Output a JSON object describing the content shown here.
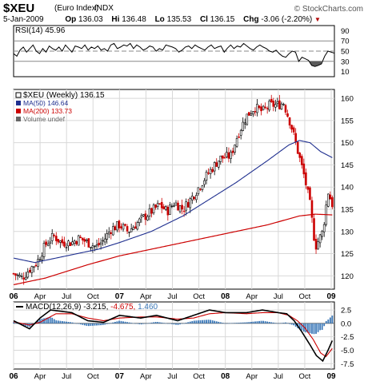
{
  "header": {
    "symbol": "$XEU",
    "name": "(Euro Index)",
    "exchange": "INDX",
    "date": "5-Jan-2009",
    "op_label": "Op",
    "op": "136.03",
    "hi_label": "Hi",
    "hi": "136.48",
    "lo_label": "Lo",
    "lo": "135.53",
    "cl_label": "Cl",
    "cl": "136.15",
    "chg_label": "Chg",
    "chg": "-3.06 (-2.20%)",
    "brand": "© StockCharts.com",
    "colors": {
      "down": "#b00000"
    }
  },
  "chart_data": [
    {
      "type": "line",
      "title": "RSI(14) 45.96",
      "series": [
        {
          "name": "RSI(14)",
          "last": 45.96
        }
      ],
      "y_ticks": [
        90,
        70,
        50,
        30,
        10
      ],
      "ylim": [
        0,
        100
      ],
      "x_range": [
        "2006-01",
        "2009-01"
      ],
      "reference_lines": [
        70,
        50,
        30
      ],
      "approx_values": [
        45,
        40,
        52,
        58,
        48,
        55,
        62,
        50,
        45,
        55,
        48,
        60,
        55,
        52,
        58,
        50,
        62,
        55,
        48,
        60,
        58,
        55,
        62,
        52,
        58,
        55,
        60,
        52,
        55,
        50,
        62,
        65,
        55,
        58,
        62,
        60,
        65,
        55,
        62,
        58,
        52,
        55,
        60,
        58,
        50,
        55,
        52,
        62,
        60,
        58,
        55,
        48,
        52,
        58,
        60,
        55,
        62,
        58,
        55,
        52,
        58,
        62,
        55,
        58,
        60,
        48,
        56,
        62,
        55,
        60,
        58,
        65,
        60,
        55,
        52,
        58,
        62,
        58,
        55,
        50,
        48,
        52,
        45,
        40,
        38,
        45,
        50,
        48,
        30,
        38,
        35,
        32,
        22,
        20,
        22,
        25,
        40,
        50,
        48,
        46
      ],
      "colors": {
        "line": "#000000",
        "overbought_fill": "#8b2e2e",
        "oversold_fill": "#5a5a5a"
      }
    },
    {
      "type": "line",
      "title": "$XEU (Weekly) 136.15",
      "series": [
        {
          "name": "$XEU (Weekly)",
          "last": 136.15,
          "style": "candlestick"
        },
        {
          "name": "MA(50)",
          "last": 146.64,
          "color": "#1f2f8f"
        },
        {
          "name": "MA(200)",
          "last": 133.73,
          "color": "#cc0000"
        },
        {
          "name": "Volume undef",
          "color": "#666666"
        }
      ],
      "y_ticks": [
        160,
        155,
        150,
        145,
        140,
        135,
        130,
        125,
        120
      ],
      "ylim": [
        117,
        162
      ],
      "x_ticks": [
        "06",
        "Apr",
        "Jul",
        "Oct",
        "07",
        "Apr",
        "Jul",
        "Oct",
        "08",
        "Apr",
        "Jul",
        "Oct",
        "09"
      ],
      "x_range": [
        "2006-01",
        "2009-01"
      ],
      "approx_close": [
        [
          2006.0,
          120.5
        ],
        [
          2006.08,
          119.5
        ],
        [
          2006.15,
          121.5
        ],
        [
          2006.22,
          123.0
        ],
        [
          2006.3,
          127.0
        ],
        [
          2006.38,
          129.0
        ],
        [
          2006.45,
          127.5
        ],
        [
          2006.55,
          127.5
        ],
        [
          2006.62,
          128.5
        ],
        [
          2006.7,
          127.5
        ],
        [
          2006.78,
          126.5
        ],
        [
          2006.85,
          128.0
        ],
        [
          2006.92,
          130.5
        ],
        [
          2007.0,
          131.5
        ],
        [
          2007.08,
          130.0
        ],
        [
          2007.15,
          131.5
        ],
        [
          2007.22,
          133.0
        ],
        [
          2007.3,
          134.5
        ],
        [
          2007.38,
          136.0
        ],
        [
          2007.45,
          134.5
        ],
        [
          2007.52,
          136.5
        ],
        [
          2007.6,
          135.0
        ],
        [
          2007.68,
          137.5
        ],
        [
          2007.75,
          140.0
        ],
        [
          2007.82,
          142.5
        ],
        [
          2007.9,
          145.0
        ],
        [
          2007.95,
          146.5
        ],
        [
          2008.05,
          147.0
        ],
        [
          2008.12,
          152.0
        ],
        [
          2008.2,
          156.0
        ],
        [
          2008.28,
          158.0
        ],
        [
          2008.35,
          157.0
        ],
        [
          2008.42,
          158.5
        ],
        [
          2008.5,
          158.5
        ],
        [
          2008.55,
          159.0
        ],
        [
          2008.62,
          154.0
        ],
        [
          2008.68,
          148.5
        ],
        [
          2008.75,
          142.0
        ],
        [
          2008.8,
          136.0
        ],
        [
          2008.85,
          126.5
        ],
        [
          2008.92,
          130.0
        ],
        [
          2008.97,
          139.0
        ],
        [
          2009.01,
          136.15
        ]
      ],
      "approx_ma50": [
        [
          2006.0,
          124.0
        ],
        [
          2006.2,
          123.0
        ],
        [
          2006.5,
          124.5
        ],
        [
          2006.8,
          126.0
        ],
        [
          2007.0,
          127.5
        ],
        [
          2007.3,
          130.0
        ],
        [
          2007.6,
          133.5
        ],
        [
          2007.9,
          138.0
        ],
        [
          2008.1,
          141.0
        ],
        [
          2008.4,
          146.0
        ],
        [
          2008.6,
          149.5
        ],
        [
          2008.7,
          150.5
        ],
        [
          2008.8,
          150.0
        ],
        [
          2008.9,
          148.0
        ],
        [
          2009.01,
          146.64
        ]
      ],
      "approx_ma200": [
        [
          2006.0,
          118.0
        ],
        [
          2006.3,
          119.5
        ],
        [
          2006.7,
          122.5
        ],
        [
          2007.0,
          124.5
        ],
        [
          2007.4,
          126.5
        ],
        [
          2007.8,
          128.5
        ],
        [
          2008.1,
          130.0
        ],
        [
          2008.4,
          131.5
        ],
        [
          2008.7,
          133.5
        ],
        [
          2008.85,
          133.9
        ],
        [
          2009.01,
          133.73
        ]
      ],
      "colors": {
        "up": "#000000",
        "down": "#cc0000"
      }
    },
    {
      "type": "line",
      "title": "MACD(12,26,9) -3.215, -4.675, 1.460",
      "series": [
        {
          "name": "MACD(12,26,9)",
          "last": -3.215,
          "color": "#000000"
        },
        {
          "name": "Signal",
          "last": -4.675,
          "color": "#cc0000"
        },
        {
          "name": "Histogram",
          "last": 1.46,
          "color": "#3b78b8",
          "style": "bar"
        }
      ],
      "legend_values": [
        "-3.215",
        "-4.675",
        "1.460"
      ],
      "y_ticks": [
        "2.5",
        "0.0",
        "-2.5",
        "-5.0",
        "-7.5"
      ],
      "ylim": [
        -8.5,
        4.0
      ],
      "x_ticks": [
        "06",
        "Apr",
        "Jul",
        "Oct",
        "07",
        "Apr",
        "Jul",
        "Oct",
        "08",
        "Apr",
        "Jul",
        "Oct",
        "09"
      ],
      "approx_macd": [
        [
          2006.0,
          0.5
        ],
        [
          2006.15,
          -1.0
        ],
        [
          2006.25,
          1.0
        ],
        [
          2006.35,
          2.5
        ],
        [
          2006.55,
          2.0
        ],
        [
          2006.7,
          0.5
        ],
        [
          2006.85,
          0.2
        ],
        [
          2007.0,
          1.5
        ],
        [
          2007.2,
          1.0
        ],
        [
          2007.35,
          1.5
        ],
        [
          2007.55,
          0.5
        ],
        [
          2007.7,
          1.5
        ],
        [
          2007.85,
          2.5
        ],
        [
          2008.0,
          2.0
        ],
        [
          2008.2,
          2.0
        ],
        [
          2008.35,
          2.5
        ],
        [
          2008.5,
          2.0
        ],
        [
          2008.58,
          1.8
        ],
        [
          2008.65,
          0.5
        ],
        [
          2008.72,
          -1.5
        ],
        [
          2008.8,
          -4.0
        ],
        [
          2008.86,
          -6.0
        ],
        [
          2008.92,
          -7.0
        ],
        [
          2008.97,
          -5.0
        ],
        [
          2009.01,
          -3.215
        ]
      ],
      "approx_signal": [
        [
          2006.0,
          0.3
        ],
        [
          2006.15,
          -0.3
        ],
        [
          2006.25,
          0.2
        ],
        [
          2006.4,
          1.8
        ],
        [
          2006.55,
          1.8
        ],
        [
          2006.7,
          1.0
        ],
        [
          2006.85,
          0.5
        ],
        [
          2007.0,
          1.0
        ],
        [
          2007.2,
          1.2
        ],
        [
          2007.35,
          1.2
        ],
        [
          2007.55,
          0.8
        ],
        [
          2007.7,
          1.0
        ],
        [
          2007.85,
          1.8
        ],
        [
          2008.0,
          2.0
        ],
        [
          2008.2,
          1.8
        ],
        [
          2008.35,
          2.0
        ],
        [
          2008.5,
          2.0
        ],
        [
          2008.6,
          1.5
        ],
        [
          2008.68,
          0.5
        ],
        [
          2008.75,
          -0.8
        ],
        [
          2008.83,
          -3.0
        ],
        [
          2008.9,
          -5.5
        ],
        [
          2008.95,
          -6.2
        ],
        [
          2009.01,
          -4.675
        ]
      ],
      "colors": {
        "zero_line": "#000000"
      }
    }
  ]
}
